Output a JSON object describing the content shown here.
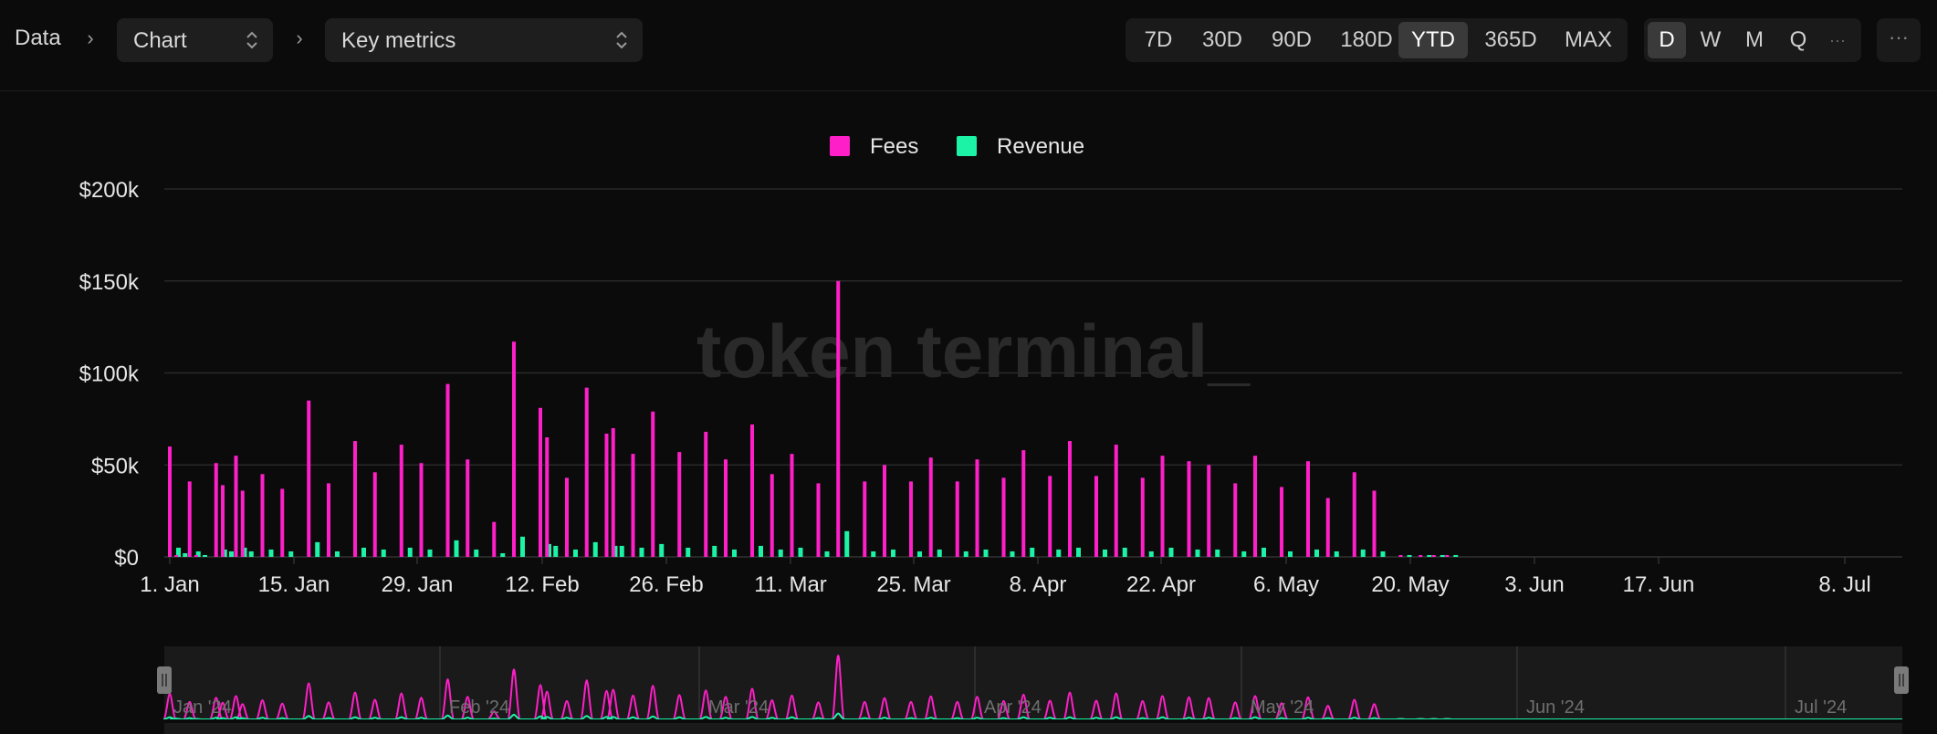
{
  "breadcrumb": {
    "root": "Data",
    "chart_select": "Chart",
    "metric_select": "Key metrics"
  },
  "range_options": [
    "7D",
    "30D",
    "90D",
    "180D",
    "YTD",
    "365D",
    "MAX"
  ],
  "range_active": "YTD",
  "granularity_options": [
    "D",
    "W",
    "M",
    "Q"
  ],
  "granularity_active": "D",
  "granularity_more": "···",
  "more_menu": "···",
  "watermark": "token terminal_",
  "colors": {
    "fees": "#ff1fc8",
    "revenue": "#1cf3a6",
    "background": "#0b0b0b",
    "grid": "#2f2f2f"
  },
  "chart_data": {
    "type": "bar",
    "title": "",
    "xlabel": "",
    "ylabel": "",
    "ylim": [
      0,
      200000
    ],
    "y_ticks": [
      "$0",
      "$50k",
      "$100k",
      "$150k",
      "$200k"
    ],
    "x_ticks": [
      "1. Jan",
      "15. Jan",
      "29. Jan",
      "12. Feb",
      "26. Feb",
      "11. Mar",
      "25. Mar",
      "8. Apr",
      "22. Apr",
      "6. May",
      "20. May",
      "3. Jun",
      "17. Jun",
      "8. Jul"
    ],
    "legend": "top-center",
    "grid": true,
    "dates": [
      "2024-01-01",
      "2024-01-02",
      "2024-01-04",
      "2024-01-05",
      "2024-01-08",
      "2024-01-09",
      "2024-01-11",
      "2024-01-12",
      "2024-01-15",
      "2024-01-18",
      "2024-01-22",
      "2024-01-25",
      "2024-01-29",
      "2024-02-01",
      "2024-02-05",
      "2024-02-08",
      "2024-02-12",
      "2024-02-15",
      "2024-02-19",
      "2024-02-22",
      "2024-02-26",
      "2024-02-27",
      "2024-03-01",
      "2024-03-04",
      "2024-03-07",
      "2024-03-08",
      "2024-03-11",
      "2024-03-14",
      "2024-03-18",
      "2024-03-22",
      "2024-03-25",
      "2024-03-29",
      "2024-04-01",
      "2024-04-04",
      "2024-04-08",
      "2024-04-11",
      "2024-04-15",
      "2024-04-18",
      "2024-04-22",
      "2024-04-25",
      "2024-04-29",
      "2024-05-02",
      "2024-05-06",
      "2024-05-09",
      "2024-05-13",
      "2024-05-16",
      "2024-05-20",
      "2024-05-23",
      "2024-05-27",
      "2024-05-30",
      "2024-06-03",
      "2024-06-06",
      "2024-06-10",
      "2024-06-13",
      "2024-06-17",
      "2024-06-21",
      "2024-06-24",
      "2024-06-28",
      "2024-07-01",
      "2024-07-05",
      "2024-07-08",
      "2024-07-10",
      "2024-07-12"
    ],
    "series": [
      {
        "name": "Fees",
        "values": [
          60000,
          1000,
          41000,
          1000,
          51000,
          39000,
          55000,
          36000,
          45000,
          37000,
          85000,
          40000,
          63000,
          46000,
          61000,
          51000,
          94000,
          53000,
          19000,
          117000,
          81000,
          65000,
          43000,
          92000,
          67000,
          70000,
          56000,
          79000,
          57000,
          68000,
          53000,
          72000,
          45000,
          56000,
          40000,
          150000,
          41000,
          50000,
          41000,
          54000,
          41000,
          53000,
          43000,
          58000,
          44000,
          63000,
          44000,
          61000,
          43000,
          55000,
          52000,
          50000,
          40000,
          55000,
          38000,
          52000,
          32000,
          46000,
          36000,
          1000,
          1000,
          1000,
          1000
        ]
      },
      {
        "name": "Revenue",
        "values": [
          5000,
          2000,
          3000,
          1000,
          4000,
          3000,
          5000,
          3000,
          4000,
          3000,
          8000,
          3000,
          5000,
          4000,
          5000,
          4000,
          9000,
          4000,
          2000,
          11000,
          7000,
          6000,
          4000,
          8000,
          6000,
          6000,
          5000,
          7000,
          5000,
          6000,
          4000,
          6000,
          4000,
          5000,
          3000,
          14000,
          3000,
          4000,
          3000,
          4000,
          3000,
          4000,
          3000,
          5000,
          4000,
          5000,
          4000,
          5000,
          3000,
          5000,
          4000,
          4000,
          3000,
          5000,
          3000,
          4000,
          3000,
          4000,
          3000,
          1000,
          1000,
          1000,
          1000
        ]
      }
    ]
  },
  "navigator": {
    "month_labels": [
      "Jan '24",
      "Feb '24",
      "Mar '24",
      "Apr '24",
      "May '24",
      "Jun '24",
      "Jul '24"
    ]
  }
}
